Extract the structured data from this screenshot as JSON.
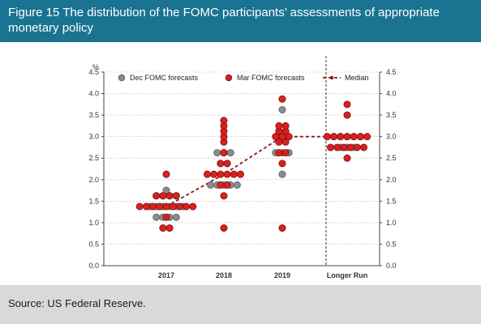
{
  "header": {
    "title": "Figure 15 The distribution of the FOMC participants’ assessments of appropriate monetary policy"
  },
  "footer": {
    "source": "Source: US Federal Reserve."
  },
  "colors": {
    "header_bg": "#1a7391",
    "dec": "#8c8c8c",
    "mar": "#d92020",
    "median": "#8b1a1a",
    "footer_bg": "#d9d9d9"
  },
  "chart_data": {
    "type": "scatter",
    "categories": [
      "2017",
      "2018",
      "2019",
      "Longer Run"
    ],
    "y_unit_label": "%",
    "ylim": [
      0,
      4.5
    ],
    "yticks": [
      "0.0",
      "0.5",
      "1.0",
      "1.5",
      "2.0",
      "2.5",
      "3.0",
      "3.5",
      "4.0",
      "4.5"
    ],
    "grid": true,
    "legend_position": "top",
    "legend": [
      "Dec FOMC forecasts",
      "Mar FOMC forecasts",
      "Median"
    ],
    "series": [
      {
        "name": "Dec FOMC forecasts",
        "points": [
          {
            "x": "2017",
            "y": 1.125,
            "count": 4
          },
          {
            "x": "2017",
            "y": 1.375,
            "count": 6
          },
          {
            "x": "2017",
            "y": 1.625,
            "count": 4
          },
          {
            "x": "2017",
            "y": 1.75,
            "count": 1
          },
          {
            "x": "2018",
            "y": 1.875,
            "count": 5
          },
          {
            "x": "2018",
            "y": 2.375,
            "count": 2
          },
          {
            "x": "2018",
            "y": 2.625,
            "count": 3
          },
          {
            "x": "2019",
            "y": 2.125,
            "count": 1
          },
          {
            "x": "2019",
            "y": 2.625,
            "count": 3
          },
          {
            "x": "2019",
            "y": 3.125,
            "count": 2
          },
          {
            "x": "2019",
            "y": 3.625,
            "count": 1
          },
          {
            "x": "Longer Run",
            "y": 2.75,
            "count": 3
          },
          {
            "x": "Longer Run",
            "y": 3.0,
            "count": 5
          }
        ]
      },
      {
        "name": "Mar FOMC forecasts",
        "points": [
          {
            "x": "2017",
            "y": 0.875,
            "count": 2
          },
          {
            "x": "2017",
            "y": 1.125,
            "count": 1
          },
          {
            "x": "2017",
            "y": 1.375,
            "count": 9
          },
          {
            "x": "2017",
            "y": 1.625,
            "count": 4
          },
          {
            "x": "2017",
            "y": 2.125,
            "count": 1
          },
          {
            "x": "2018",
            "y": 0.875,
            "count": 1
          },
          {
            "x": "2018",
            "y": 1.625,
            "count": 1
          },
          {
            "x": "2018",
            "y": 1.875,
            "count": 2
          },
          {
            "x": "2018",
            "y": 2.125,
            "count": 6
          },
          {
            "x": "2018",
            "y": 2.375,
            "count": 2
          },
          {
            "x": "2018",
            "y": 2.625,
            "count": 1
          },
          {
            "x": "2018",
            "y": 2.875,
            "count": 1
          },
          {
            "x": "2018",
            "y": 3.0,
            "count": 1
          },
          {
            "x": "2018",
            "y": 3.125,
            "count": 1
          },
          {
            "x": "2018",
            "y": 3.25,
            "count": 1
          },
          {
            "x": "2018",
            "y": 3.375,
            "count": 1
          },
          {
            "x": "2019",
            "y": 0.875,
            "count": 1
          },
          {
            "x": "2019",
            "y": 2.375,
            "count": 1
          },
          {
            "x": "2019",
            "y": 2.625,
            "count": 2
          },
          {
            "x": "2019",
            "y": 2.875,
            "count": 2
          },
          {
            "x": "2019",
            "y": 3.0,
            "count": 3
          },
          {
            "x": "2019",
            "y": 3.125,
            "count": 2
          },
          {
            "x": "2019",
            "y": 3.25,
            "count": 2
          },
          {
            "x": "2019",
            "y": 3.875,
            "count": 1
          },
          {
            "x": "Longer Run",
            "y": 2.5,
            "count": 1
          },
          {
            "x": "Longer Run",
            "y": 2.75,
            "count": 6
          },
          {
            "x": "Longer Run",
            "y": 3.0,
            "count": 7
          },
          {
            "x": "Longer Run",
            "y": 3.5,
            "count": 1
          },
          {
            "x": "Longer Run",
            "y": 3.75,
            "count": 1
          }
        ]
      }
    ],
    "median": {
      "name": "Median",
      "points": [
        {
          "x": "2017",
          "y": 1.375
        },
        {
          "x": "2018",
          "y": 2.125
        },
        {
          "x": "2019",
          "y": 3.0
        },
        {
          "x": "Longer Run",
          "y": 3.0
        }
      ]
    }
  }
}
